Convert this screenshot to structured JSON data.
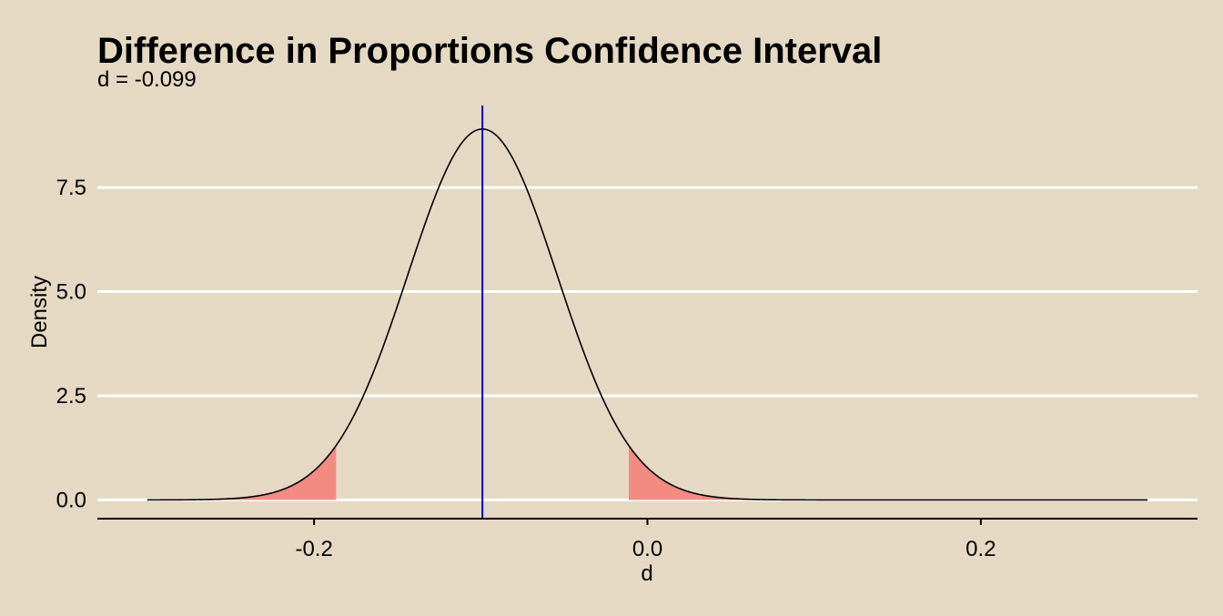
{
  "chart_data": {
    "type": "area",
    "title": "Difference in Proportions Confidence Interval",
    "subtitle": "d = -0.099",
    "xlabel": "d",
    "ylabel": "Density",
    "xlim": [
      -0.33,
      0.33
    ],
    "ylim": [
      -0.45,
      9.6
    ],
    "x_ticks": [
      -0.2,
      0.0,
      0.2
    ],
    "x_tick_labels": [
      "-0.2",
      "0.0",
      "0.2"
    ],
    "y_ticks": [
      0,
      2.5,
      5.0,
      7.5
    ],
    "y_tick_labels": [
      "0.0",
      "2.5",
      "5.0",
      "7.5"
    ],
    "grid": "horizontal",
    "curve": {
      "distribution": "normal",
      "mean": -0.099,
      "sd": 0.0448,
      "x_range": [
        -0.3,
        0.3
      ],
      "color": "#000000"
    },
    "shaded_regions": [
      {
        "from": -0.3,
        "to": -0.1868,
        "color": "#f28b82"
      },
      {
        "from": -0.0112,
        "to": 0.3,
        "color": "#f28b82"
      }
    ],
    "vline": {
      "x": -0.099,
      "color": "#0000cc"
    },
    "colors": {
      "background": "#e5d9c4",
      "grid": "#ffffff",
      "axis": "#000000"
    }
  }
}
